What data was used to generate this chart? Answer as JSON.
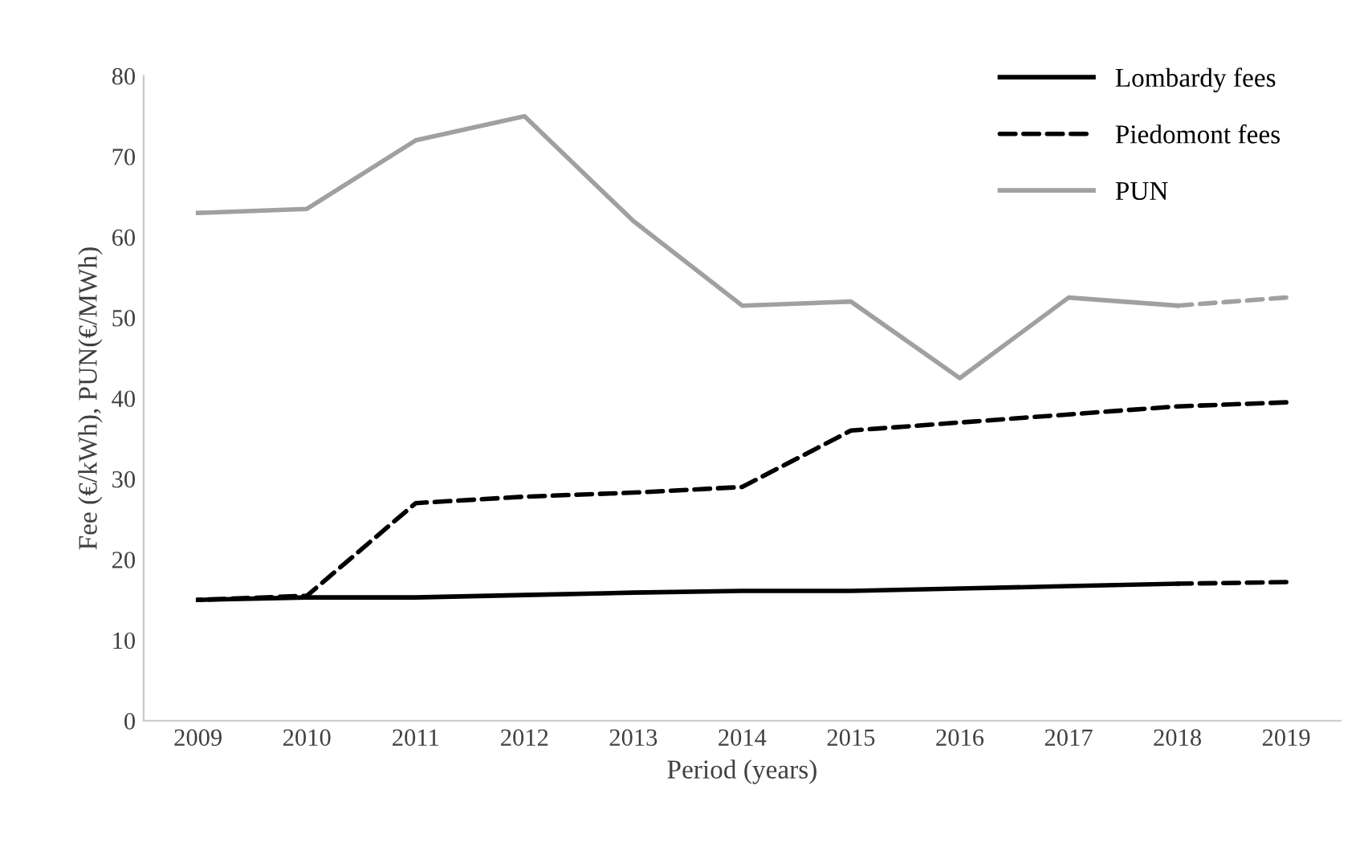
{
  "chart_data": {
    "type": "line",
    "xlabel": "Period (years)",
    "ylabel": "Fee (€/kWh), PUN(€/MWh)",
    "categories": [
      "2009",
      "2010",
      "2011",
      "2012",
      "2013",
      "2014",
      "2015",
      "2016",
      "2017",
      "2018",
      "2019"
    ],
    "ylim": [
      0,
      80
    ],
    "yticks": [
      0,
      10,
      20,
      30,
      40,
      50,
      60,
      70,
      80
    ],
    "grid": false,
    "legend": "top right",
    "marker": "none",
    "series": [
      {
        "name": "Lombardy fees",
        "color": "#000000",
        "line_style": "solid",
        "values": [
          15,
          15.3,
          15.3,
          15.6,
          15.9,
          16.1,
          16.1,
          16.4,
          16.7,
          17,
          null
        ]
      },
      {
        "name": "Piedomont fees",
        "color": "#000000",
        "line_style": "dashed",
        "values": [
          15,
          15.5,
          27,
          27.8,
          28.3,
          29,
          36,
          37,
          38,
          39,
          39.5
        ]
      },
      {
        "name": "PUN",
        "color": "#a0a0a0",
        "line_style": "solid",
        "values": [
          63,
          63.5,
          72,
          75,
          62,
          51.5,
          52,
          42.5,
          52.5,
          51.5,
          null
        ]
      },
      {
        "color": "#000000",
        "line_style": "dashed",
        "values": [
          null,
          null,
          null,
          null,
          null,
          null,
          null,
          null,
          null,
          17,
          17.2
        ]
      },
      {
        "color": "#a0a0a0",
        "line_style": "dashed",
        "values": [
          null,
          null,
          null,
          null,
          null,
          null,
          null,
          null,
          null,
          51.5,
          52.5
        ]
      }
    ]
  }
}
